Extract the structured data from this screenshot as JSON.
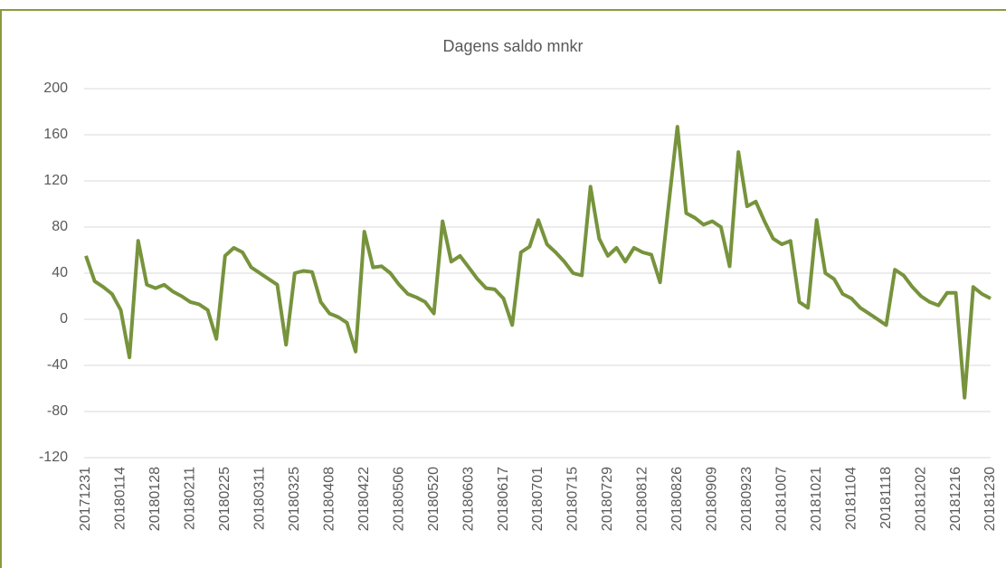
{
  "chart_data": {
    "type": "line",
    "title": "Dagens saldo mnkr",
    "categories": [
      "20171231",
      null,
      null,
      null,
      "20180114",
      null,
      null,
      null,
      "20180128",
      null,
      null,
      null,
      "20180211",
      null,
      null,
      null,
      "20180225",
      null,
      null,
      null,
      "20180311",
      null,
      null,
      null,
      "20180325",
      null,
      null,
      null,
      "20180408",
      null,
      null,
      null,
      "20180422",
      null,
      null,
      null,
      "20180506",
      null,
      null,
      null,
      "20180520",
      null,
      null,
      null,
      "20180603",
      null,
      null,
      null,
      "20180617",
      null,
      null,
      null,
      "20180701",
      null,
      null,
      null,
      "20180715",
      null,
      null,
      null,
      "20180729",
      null,
      null,
      null,
      "20180812",
      null,
      null,
      null,
      "20180826",
      null,
      null,
      null,
      "20180909",
      null,
      null,
      null,
      "20180923",
      null,
      null,
      null,
      "20181007",
      null,
      null,
      null,
      "20181021",
      null,
      null,
      null,
      "20181104",
      null,
      null,
      null,
      "20181118",
      null,
      null,
      null,
      "20181202",
      null,
      null,
      null,
      "20181216",
      null,
      null,
      null,
      "20181230"
    ],
    "values": [
      55,
      33,
      28,
      22,
      8,
      -33,
      68,
      30,
      27,
      30,
      24,
      20,
      15,
      13,
      8,
      -17,
      55,
      62,
      58,
      45,
      40,
      35,
      30,
      -22,
      40,
      42,
      41,
      15,
      5,
      2,
      -3,
      -28,
      76,
      45,
      46,
      40,
      30,
      22,
      19,
      15,
      5,
      85,
      50,
      55,
      45,
      35,
      27,
      26,
      18,
      -5,
      58,
      63,
      86,
      65,
      58,
      50,
      40,
      38,
      115,
      70,
      55,
      62,
      50,
      62,
      58,
      56,
      32,
      100,
      167,
      92,
      88,
      82,
      85,
      80,
      46,
      145,
      98,
      102,
      85,
      70,
      65,
      68,
      15,
      10,
      86,
      40,
      35,
      22,
      18,
      10,
      5,
      0,
      -5,
      43,
      38,
      28,
      20,
      15,
      12,
      23,
      23,
      -68,
      28,
      22,
      18
    ],
    "color": "#77933c",
    "ylim": [
      -120,
      200
    ],
    "yticks": [
      200,
      160,
      120,
      80,
      40,
      0,
      -40,
      -80,
      -120
    ],
    "grid": true
  }
}
